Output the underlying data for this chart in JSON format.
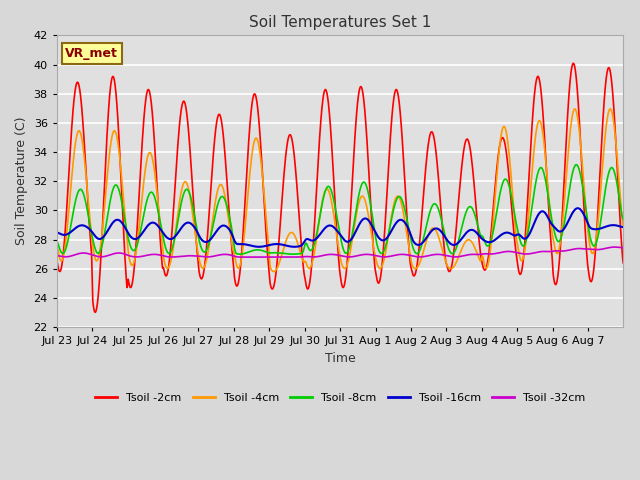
{
  "title": "Soil Temperatures Set 1",
  "xlabel": "Time",
  "ylabel": "Soil Temperature (C)",
  "ylim": [
    22,
    42
  ],
  "annotation": "VR_met",
  "bg_color": "#e8e8e8",
  "plot_bg_color": "#e0e0e0",
  "grid_color": "#cccccc",
  "xtick_labels": [
    "Jul 23",
    "Jul 24",
    "Jul 25",
    "Jul 26",
    "Jul 27",
    "Jul 28",
    "Jul 29",
    "Jul 30",
    "Jul 31",
    "Aug 1",
    "Aug 2",
    "Aug 3",
    "Aug 4",
    "Aug 5",
    "Aug 6",
    "Aug 7"
  ],
  "legend_labels": [
    "Tsoil -2cm",
    "Tsoil -4cm",
    "Tsoil -8cm",
    "Tsoil -16cm",
    "Tsoil -32cm"
  ],
  "line_colors": [
    "#ff0000",
    "#ff9900",
    "#00cc00",
    "#0000cc",
    "#cc00cc"
  ],
  "num_days": 16,
  "pts_per_day": 144,
  "day_peak_hour": 14,
  "day_trough_hour": 6,
  "highs_2cm": [
    38.8,
    39.2,
    38.3,
    37.5,
    36.6,
    38.0,
    35.2,
    38.3,
    38.5,
    38.3,
    35.4,
    34.9,
    35.0,
    39.2,
    40.1,
    39.8
  ],
  "lows_2cm": [
    25.8,
    23.0,
    24.7,
    25.5,
    25.3,
    24.8,
    24.6,
    24.6,
    24.7,
    25.0,
    25.5,
    25.8,
    25.9,
    25.6,
    24.9,
    25.1
  ],
  "highs_4cm": [
    35.5,
    35.5,
    34.0,
    32.0,
    31.8,
    35.0,
    28.5,
    31.5,
    31.0,
    31.0,
    28.8,
    28.0,
    35.8,
    36.2,
    37.0,
    37.0
  ],
  "lows_4cm": [
    26.5,
    26.5,
    26.2,
    26.0,
    26.0,
    26.0,
    25.8,
    26.0,
    26.0,
    26.0,
    26.0,
    26.0,
    26.0,
    26.5,
    27.0,
    27.0
  ],
  "highs_8cm": [
    31.5,
    31.8,
    31.3,
    31.5,
    31.0,
    27.3,
    27.0,
    31.7,
    32.0,
    31.0,
    30.5,
    30.3,
    32.2,
    33.0,
    33.2,
    33.0
  ],
  "lows_8cm": [
    27.0,
    27.0,
    27.2,
    27.0,
    27.1,
    27.0,
    27.1,
    27.2,
    27.0,
    27.0,
    27.0,
    27.0,
    27.5,
    27.5,
    27.8,
    27.5
  ],
  "highs_16cm": [
    29.0,
    29.4,
    29.2,
    29.2,
    29.0,
    27.5,
    27.5,
    29.0,
    29.5,
    29.4,
    28.8,
    28.7,
    28.5,
    30.0,
    30.2,
    29.0
  ],
  "lows_16cm": [
    28.3,
    28.0,
    28.0,
    28.0,
    27.8,
    27.7,
    27.7,
    27.9,
    27.8,
    27.9,
    27.6,
    27.6,
    27.8,
    28.0,
    28.5,
    28.7
  ],
  "highs_32cm": [
    27.1,
    27.1,
    27.0,
    26.9,
    27.0,
    26.8,
    26.8,
    27.0,
    27.0,
    27.0,
    27.0,
    27.0,
    27.2,
    27.2,
    27.4,
    27.5
  ],
  "lows_32cm": [
    26.8,
    26.8,
    26.8,
    26.8,
    26.8,
    26.8,
    26.8,
    26.8,
    26.8,
    26.8,
    26.8,
    26.8,
    27.0,
    27.0,
    27.2,
    27.3
  ]
}
